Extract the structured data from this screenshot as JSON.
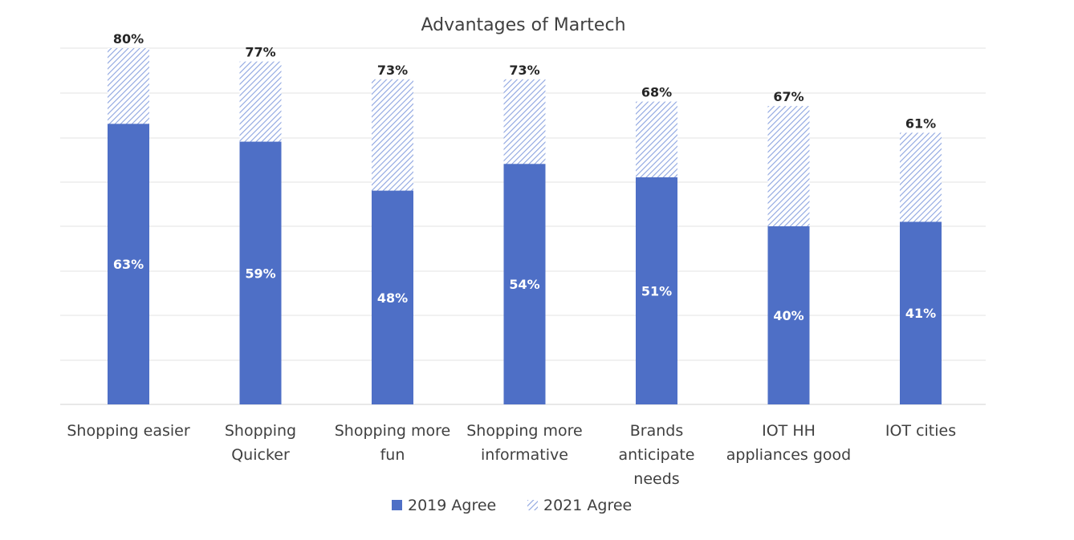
{
  "chart_data": {
    "type": "bar",
    "title": "Advantages of Martech",
    "categories": [
      [
        "Shopping easier"
      ],
      [
        "Shopping",
        "Quicker"
      ],
      [
        "Shopping more",
        "fun"
      ],
      [
        "Shopping more",
        "informative"
      ],
      [
        "Brands",
        "anticipate",
        "needs"
      ],
      [
        "IOT HH",
        "appliances good"
      ],
      [
        "IOT cities"
      ]
    ],
    "series": [
      {
        "name": "2019 Agree",
        "values": [
          63,
          59,
          48,
          54,
          51,
          40,
          41
        ],
        "labels": [
          "63%",
          "59%",
          "48%",
          "54%",
          "51%",
          "40%",
          "41%"
        ],
        "color": "#4E6FC6",
        "fill": "solid"
      },
      {
        "name": "2021 Agree",
        "values": [
          80,
          77,
          73,
          73,
          68,
          67,
          61
        ],
        "labels": [
          "80%",
          "77%",
          "73%",
          "73%",
          "68%",
          "67%",
          "61%"
        ],
        "color": "#8CA4E0",
        "fill": "hatched"
      }
    ],
    "ylim": [
      0,
      100
    ],
    "grid": true,
    "legend": "bottom-center"
  }
}
